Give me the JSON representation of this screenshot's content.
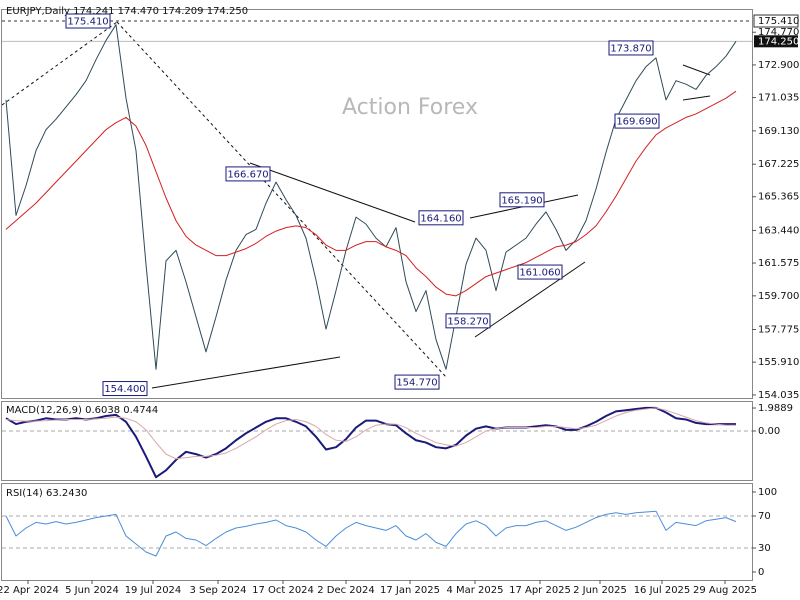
{
  "chart_data": [
    {
      "type": "line",
      "title": "EURJPY,Daily  174.241 174.470 174.209 174.250",
      "watermark": "Action Forex",
      "ylim": [
        153.86,
        176.04
      ],
      "yticks": [
        {
          "value": 174.77,
          "label": "174.770"
        },
        {
          "value": 172.9,
          "label": "172.900"
        },
        {
          "value": 171.035,
          "label": "171.035"
        },
        {
          "value": 169.13,
          "label": "169.130"
        },
        {
          "value": 167.225,
          "label": "167.225"
        },
        {
          "value": 165.365,
          "label": "165.365"
        },
        {
          "value": 163.44,
          "label": "163.440"
        },
        {
          "value": 161.575,
          "label": "161.575"
        },
        {
          "value": 159.7,
          "label": "159.700"
        },
        {
          "value": 157.775,
          "label": "157.775"
        },
        {
          "value": 155.91,
          "label": "155.910"
        },
        {
          "value": 154.035,
          "label": "154.035"
        }
      ],
      "high_level": {
        "value": 175.41,
        "label": "175.410"
      },
      "last_price": {
        "value": 174.25,
        "label": "174.250"
      },
      "annotations": [
        {
          "value": 175.41,
          "label": "175.410"
        },
        {
          "value": 166.67,
          "label": "166.670"
        },
        {
          "value": 154.4,
          "label": "154.400"
        },
        {
          "value": 164.16,
          "label": "164.160"
        },
        {
          "value": 165.19,
          "label": "165.190"
        },
        {
          "value": 154.77,
          "label": "154.770"
        },
        {
          "value": 161.06,
          "label": "161.060"
        },
        {
          "value": 158.27,
          "label": "158.270"
        },
        {
          "value": 173.87,
          "label": "173.870"
        },
        {
          "value": 169.69,
          "label": "169.690"
        }
      ],
      "series": [
        {
          "color": "#2f4a58",
          "values": [
            170.9,
            164.3,
            166.0,
            168.0,
            169.2,
            169.8,
            170.5,
            171.2,
            172.0,
            173.2,
            174.3,
            175.2,
            171.0,
            168.0,
            161.5,
            155.5,
            161.7,
            162.3,
            160.5,
            158.5,
            156.5,
            158.5,
            160.6,
            162.3,
            163.2,
            163.5,
            165.0,
            166.2,
            165.2,
            164.3,
            163.0,
            160.6,
            157.8,
            160.0,
            162.3,
            164.2,
            163.8,
            163.0,
            162.5,
            163.6,
            160.5,
            158.8,
            160.0,
            157.2,
            155.5,
            158.5,
            161.5,
            163.0,
            162.3,
            160.0,
            162.2,
            162.6,
            163.0,
            163.8,
            164.5,
            163.5,
            162.3,
            162.9,
            164.0,
            165.8,
            167.9,
            169.8,
            170.9,
            172.0,
            172.8,
            173.3,
            170.9,
            172.0,
            171.8,
            171.5,
            172.3,
            172.8,
            173.4,
            174.25
          ]
        },
        {
          "color": "#d42020",
          "values": [
            163.5,
            164.0,
            164.5,
            165.0,
            165.6,
            166.2,
            166.8,
            167.4,
            168.0,
            168.6,
            169.2,
            169.6,
            169.9,
            169.4,
            168.3,
            166.8,
            165.3,
            164.0,
            163.1,
            162.6,
            162.3,
            162.0,
            162.0,
            162.2,
            162.4,
            162.7,
            163.1,
            163.4,
            163.6,
            163.7,
            163.6,
            163.2,
            162.6,
            162.3,
            162.3,
            162.6,
            162.8,
            162.8,
            162.5,
            162.3,
            162.0,
            161.3,
            160.8,
            160.2,
            159.8,
            159.7,
            160.0,
            160.4,
            160.8,
            161.0,
            161.2,
            161.4,
            161.6,
            161.9,
            162.2,
            162.5,
            162.6,
            162.8,
            163.2,
            163.7,
            164.5,
            165.4,
            166.4,
            167.4,
            168.2,
            168.9,
            169.3,
            169.6,
            169.9,
            170.1,
            170.4,
            170.7,
            171.0,
            171.4
          ]
        }
      ]
    },
    {
      "type": "line",
      "title": "MACD(12,26,9) 0.6038 0.4744",
      "ylim": [
        -4.24,
        2.51
      ],
      "yticks": [
        1.9889,
        {
          "value": 0,
          "label": "0.00"
        }
      ],
      "levels": [
        0
      ],
      "series": [
        {
          "color": "#1a1a7a",
          "values": [
            1.1,
            0.6,
            0.8,
            0.9,
            1.1,
            1.0,
            1.0,
            1.1,
            1.0,
            1.1,
            1.3,
            1.4,
            0.8,
            -0.5,
            -2.2,
            -4.0,
            -3.4,
            -2.5,
            -1.8,
            -2.0,
            -2.3,
            -2.0,
            -1.5,
            -0.8,
            -0.2,
            0.3,
            0.8,
            1.1,
            1.1,
            0.8,
            0.4,
            -0.5,
            -1.6,
            -1.4,
            -0.7,
            0.3,
            0.9,
            0.9,
            0.6,
            0.5,
            -0.2,
            -0.8,
            -1.0,
            -1.4,
            -1.5,
            -1.2,
            -0.4,
            0.2,
            0.4,
            0.2,
            0.3,
            0.3,
            0.3,
            0.4,
            0.5,
            0.4,
            0.1,
            0.1,
            0.4,
            0.8,
            1.3,
            1.7,
            1.8,
            1.9,
            2.0,
            2.0,
            1.6,
            1.1,
            1.0,
            0.7,
            0.6,
            0.6,
            0.6,
            0.6
          ]
        },
        {
          "color": "#d8a8a8",
          "values": [
            1.0,
            0.9,
            0.85,
            0.85,
            0.9,
            0.95,
            1.0,
            1.0,
            1.0,
            1.05,
            1.1,
            1.2,
            1.1,
            0.8,
            0.1,
            -1.0,
            -2.0,
            -2.4,
            -2.3,
            -2.2,
            -2.2,
            -2.1,
            -1.9,
            -1.5,
            -1.0,
            -0.5,
            0.1,
            0.6,
            0.9,
            1.0,
            0.8,
            0.4,
            -0.3,
            -0.8,
            -0.9,
            -0.5,
            0.1,
            0.5,
            0.6,
            0.6,
            0.3,
            -0.2,
            -0.6,
            -1.0,
            -1.2,
            -1.3,
            -1.0,
            -0.5,
            0.0,
            0.2,
            0.3,
            0.3,
            0.3,
            0.3,
            0.4,
            0.4,
            0.3,
            0.2,
            0.3,
            0.5,
            0.9,
            1.3,
            1.6,
            1.8,
            1.9,
            2.0,
            1.8,
            1.5,
            1.2,
            0.9,
            0.7,
            0.6,
            0.5,
            0.5
          ]
        }
      ]
    },
    {
      "type": "line",
      "title": "RSI(14) 63.2430",
      "ylim": [
        -10,
        110
      ],
      "yticks": [
        100,
        70,
        30,
        0
      ],
      "levels": [
        70,
        30
      ],
      "xticks": [
        {
          "value": 2.2,
          "label": "22 Apr 2024"
        },
        {
          "value": 8.6,
          "label": "5 Jun 2024"
        },
        {
          "value": 14.7,
          "label": "19 Jul 2024"
        },
        {
          "value": 21.2,
          "label": "3 Sep 2024"
        },
        {
          "value": 27.7,
          "label": "17 Oct 2024"
        },
        {
          "value": 34,
          "label": "2 Dec 2024"
        },
        {
          "value": 40.4,
          "label": "17 Jan 2025"
        },
        {
          "value": 46.9,
          "label": "4 Mar 2025"
        },
        {
          "value": 53.4,
          "label": "17 Apr 2025"
        },
        {
          "value": 59.4,
          "label": "2 Jun 2025"
        },
        {
          "value": 65.6,
          "label": "16 Jul 2025"
        },
        {
          "value": 71.9,
          "label": "29 Aug 2025"
        }
      ],
      "series": [
        {
          "color": "#4a8fd8",
          "values": [
            70,
            45,
            55,
            62,
            60,
            63,
            60,
            62,
            65,
            68,
            70,
            72,
            45,
            35,
            25,
            20,
            45,
            50,
            42,
            40,
            33,
            42,
            50,
            55,
            57,
            60,
            62,
            65,
            58,
            55,
            50,
            40,
            32,
            45,
            55,
            62,
            58,
            55,
            52,
            58,
            45,
            40,
            48,
            37,
            32,
            48,
            60,
            64,
            58,
            45,
            55,
            58,
            58,
            62,
            64,
            58,
            52,
            56,
            62,
            68,
            72,
            74,
            72,
            74,
            75,
            76,
            52,
            62,
            60,
            58,
            64,
            66,
            68,
            63
          ]
        }
      ]
    }
  ]
}
